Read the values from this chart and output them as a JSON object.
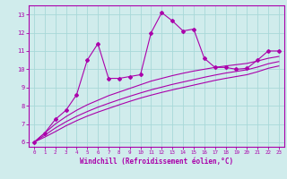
{
  "x": [
    0,
    1,
    2,
    3,
    4,
    5,
    6,
    7,
    8,
    9,
    10,
    11,
    12,
    13,
    14,
    15,
    16,
    17,
    18,
    19,
    20,
    21,
    22,
    23
  ],
  "y_main": [
    6.0,
    6.5,
    7.25,
    7.75,
    8.6,
    10.5,
    11.4,
    9.5,
    9.5,
    9.6,
    9.7,
    12.0,
    13.1,
    12.65,
    12.1,
    12.2,
    10.6,
    10.1,
    10.1,
    10.0,
    10.05,
    10.5,
    11.0,
    11.0
  ],
  "y_line1": [
    6.0,
    6.5,
    7.0,
    7.4,
    7.75,
    8.05,
    8.3,
    8.55,
    8.75,
    8.95,
    9.15,
    9.35,
    9.5,
    9.65,
    9.78,
    9.9,
    10.0,
    10.1,
    10.18,
    10.25,
    10.32,
    10.45,
    10.6,
    10.7
  ],
  "y_line2": [
    6.0,
    6.38,
    6.78,
    7.12,
    7.42,
    7.68,
    7.92,
    8.13,
    8.33,
    8.52,
    8.7,
    8.87,
    9.02,
    9.17,
    9.3,
    9.43,
    9.56,
    9.68,
    9.79,
    9.88,
    9.97,
    10.12,
    10.3,
    10.42
  ],
  "y_line3": [
    6.0,
    6.28,
    6.58,
    6.9,
    7.18,
    7.43,
    7.65,
    7.85,
    8.05,
    8.24,
    8.42,
    8.58,
    8.73,
    8.87,
    9.0,
    9.13,
    9.26,
    9.39,
    9.5,
    9.6,
    9.7,
    9.86,
    10.05,
    10.18
  ],
  "line_color": "#aa00aa",
  "bg_color": "#d0ecec",
  "grid_color": "#a8d8d8",
  "axis_color": "#aa00aa",
  "xlabel": "Windchill (Refroidissement éolien,°C)",
  "xlim": [
    -0.5,
    23.5
  ],
  "ylim": [
    5.75,
    13.5
  ],
  "yticks": [
    6,
    7,
    8,
    9,
    10,
    11,
    12,
    13
  ],
  "xticks": [
    0,
    1,
    2,
    3,
    4,
    5,
    6,
    7,
    8,
    9,
    10,
    11,
    12,
    13,
    14,
    15,
    16,
    17,
    18,
    19,
    20,
    21,
    22,
    23
  ]
}
